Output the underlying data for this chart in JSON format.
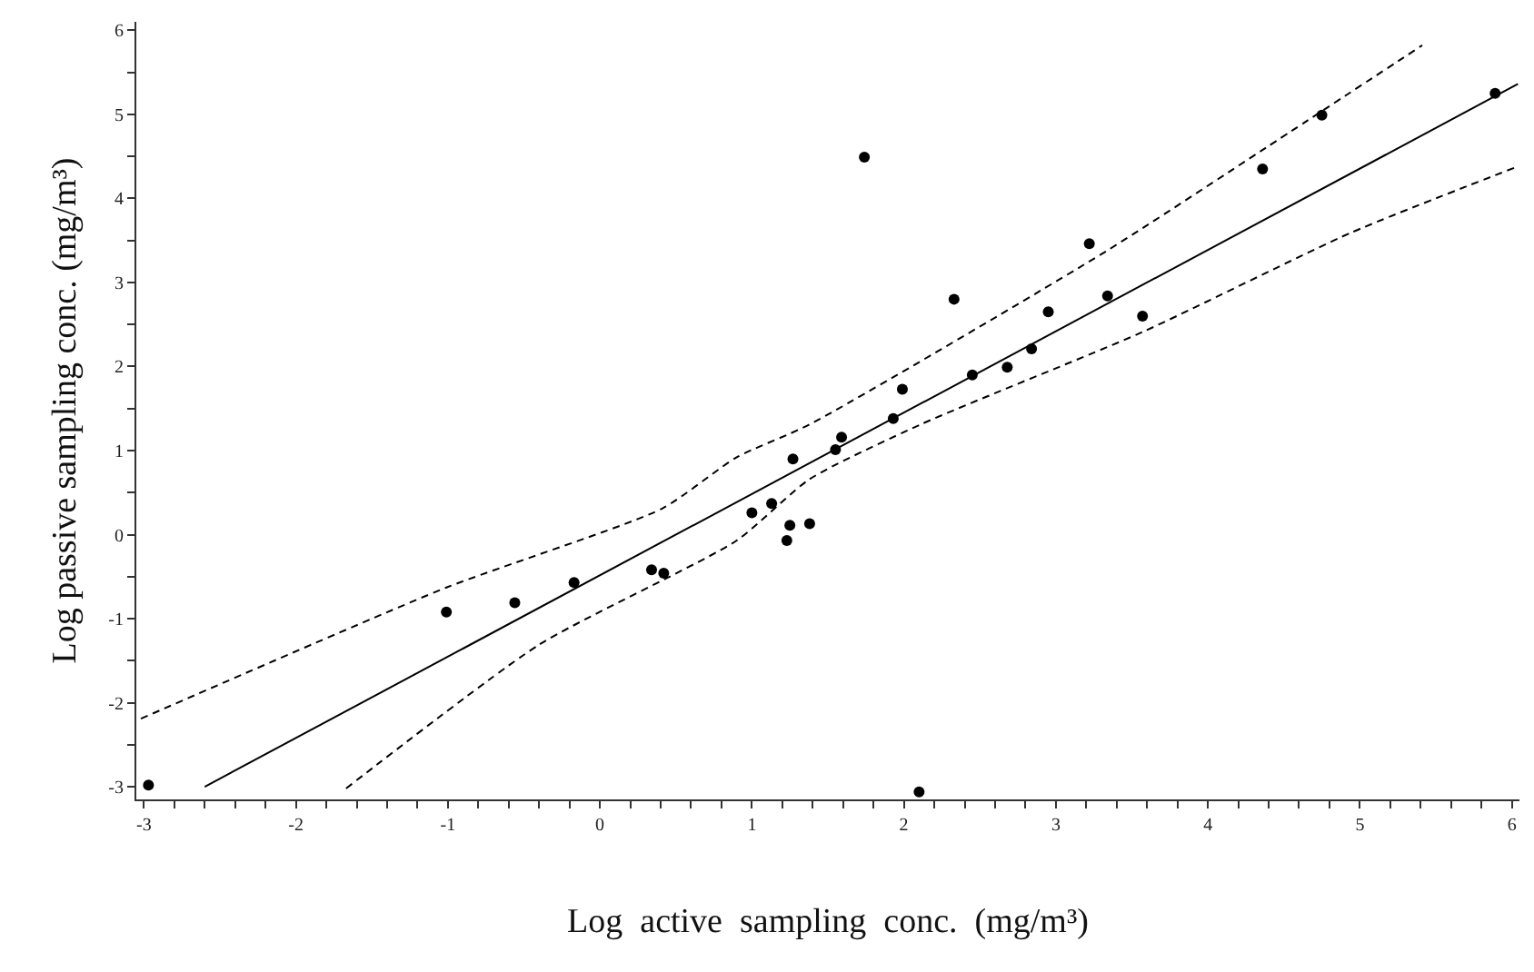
{
  "chart_data": {
    "type": "scatter",
    "xlabel": "Log  active  sampling  conc.  (mg/m³)",
    "ylabel": "Log passive sampling conc. (mg/m³)",
    "xlim": [
      -3.05,
      6.05
    ],
    "ylim": [
      -3.15,
      6.1
    ],
    "xticks": [
      -3,
      {
        "value": -2.8,
        "label": null
      },
      {
        "value": -2.6,
        "label": null
      },
      {
        "value": -2.4,
        "label": null
      },
      {
        "value": -2.2,
        "label": null
      },
      -2,
      {
        "value": -1.8,
        "label": null
      },
      {
        "value": -1.6,
        "label": null
      },
      {
        "value": -1.4,
        "label": null
      },
      {
        "value": -1.2,
        "label": null
      },
      -1,
      {
        "value": -0.8,
        "label": null
      },
      {
        "value": -0.6,
        "label": null
      },
      {
        "value": -0.4,
        "label": null
      },
      {
        "value": -0.2,
        "label": null
      },
      0,
      {
        "value": 0.2,
        "label": null
      },
      {
        "value": 0.4,
        "label": null
      },
      {
        "value": 0.6,
        "label": null
      },
      {
        "value": 0.8,
        "label": null
      },
      1,
      {
        "value": 1.2,
        "label": null
      },
      {
        "value": 1.4,
        "label": null
      },
      {
        "value": 1.6,
        "label": null
      },
      {
        "value": 1.8,
        "label": null
      },
      2,
      {
        "value": 2.2,
        "label": null
      },
      {
        "value": 2.4,
        "label": null
      },
      {
        "value": 2.6,
        "label": null
      },
      {
        "value": 2.8,
        "label": null
      },
      3,
      {
        "value": 3.2,
        "label": null
      },
      {
        "value": 3.4,
        "label": null
      },
      {
        "value": 3.6,
        "label": null
      },
      {
        "value": 3.8,
        "label": null
      },
      4,
      {
        "value": 4.2,
        "label": null
      },
      {
        "value": 4.4,
        "label": null
      },
      {
        "value": 4.6,
        "label": null
      },
      {
        "value": 4.8,
        "label": null
      },
      5,
      {
        "value": 5.2,
        "label": null
      },
      {
        "value": 5.4,
        "label": null
      },
      {
        "value": 5.6,
        "label": null
      },
      {
        "value": 5.8,
        "label": null
      },
      6
    ],
    "yticks": [
      -3,
      {
        "value": -2.5,
        "label": null
      },
      -2,
      {
        "value": -1.5,
        "label": null
      },
      -1,
      {
        "value": -0.5,
        "label": null
      },
      0,
      {
        "value": 0.5,
        "label": null
      },
      1,
      {
        "value": 1.5,
        "label": null
      },
      2,
      {
        "value": 2.5,
        "label": null
      },
      3,
      {
        "value": 3.5,
        "label": null
      },
      4,
      {
        "value": 4.5,
        "label": null
      },
      5,
      {
        "value": 5.5,
        "label": null
      },
      6
    ],
    "series": [
      {
        "color": "#000000",
        "marker": "circle",
        "x": [
          -2.97,
          -1.01,
          -0.56,
          -0.17,
          0.34,
          0.42,
          1.0,
          1.13,
          1.23,
          1.25,
          1.27,
          1.38,
          1.55,
          1.59,
          1.74,
          1.93,
          1.99,
          2.1,
          2.33,
          2.45,
          2.68,
          2.84,
          2.95,
          3.22,
          3.34,
          3.57,
          4.36,
          4.75,
          5.89
        ],
        "values": [
          -2.98,
          -0.92,
          -0.81,
          -0.57,
          -0.42,
          -0.46,
          0.26,
          0.37,
          -0.07,
          0.11,
          0.9,
          0.13,
          1.01,
          1.16,
          4.49,
          1.38,
          1.73,
          -3.06,
          2.8,
          1.9,
          1.99,
          2.21,
          2.65,
          3.46,
          2.84,
          2.6,
          4.35,
          4.99,
          5.25
        ]
      },
      {
        "type": "line",
        "color": "#000000",
        "line_style": "solid",
        "marker": "none",
        "x": [
          -2.6,
          6.04
        ],
        "values": [
          -3.0,
          5.36
        ]
      },
      {
        "type": "line",
        "color": "#000000",
        "line_style": "dashed",
        "marker": "none",
        "x": [
          -3.02,
          -1.01,
          0.41,
          0.9,
          1.38,
          3.33,
          4.38,
          5.41
        ],
        "values": [
          -2.19,
          -0.63,
          0.31,
          0.92,
          1.31,
          3.37,
          4.6,
          5.82
        ]
      },
      {
        "type": "line",
        "color": "#000000",
        "line_style": "dashed",
        "marker": "none",
        "x": [
          -1.67,
          -0.4,
          0.9,
          1.38,
          2.11,
          3.57,
          4.94,
          6.04
        ],
        "values": [
          -3.02,
          -1.31,
          -0.07,
          0.66,
          1.31,
          2.41,
          3.59,
          4.38
        ]
      }
    ]
  }
}
